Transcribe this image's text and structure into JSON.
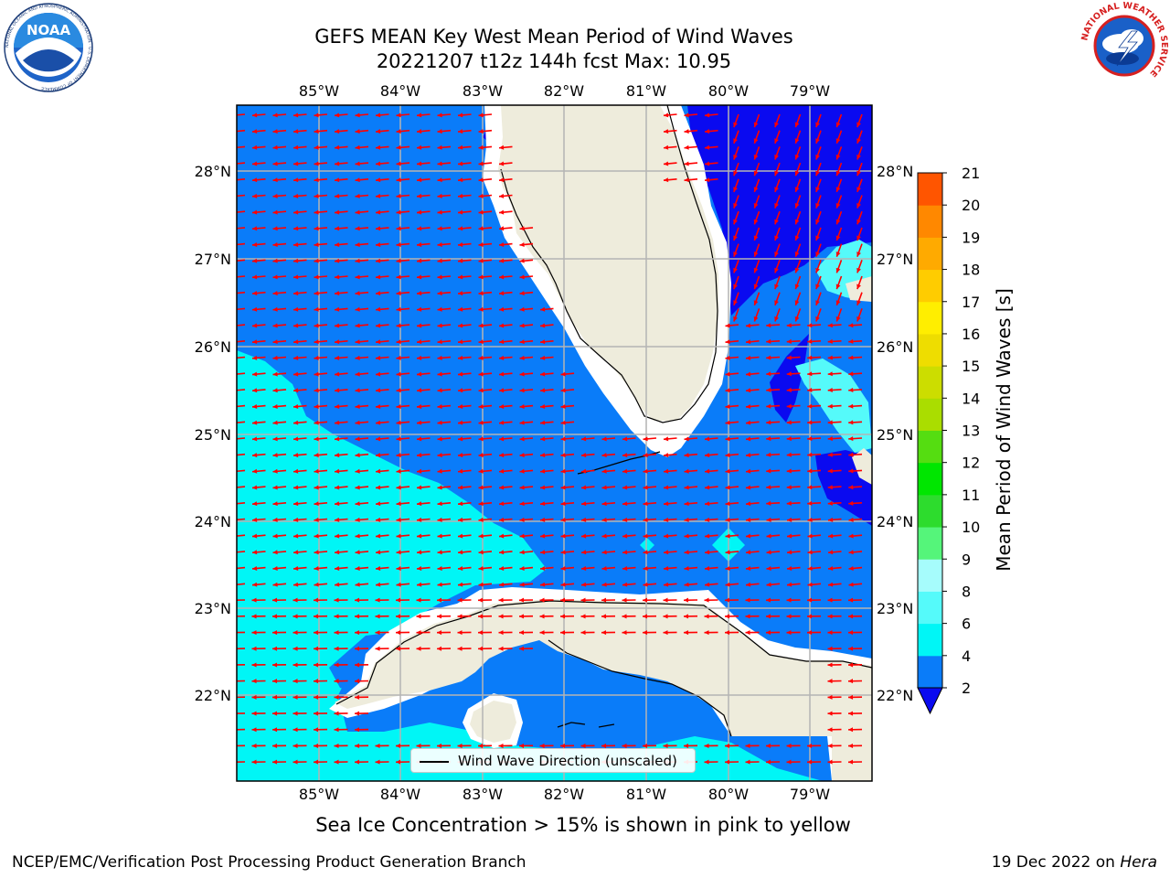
{
  "header": {
    "title_line1": "GEFS MEAN Key West Mean Period of Wind Waves",
    "title_line2": "20221207 t12z 144h fcst   Max: 10.95"
  },
  "logos": {
    "left": {
      "icon": "noaa-logo",
      "text": "NOAA",
      "ring_text": "NATIONAL OCEANIC AND ATMOSPHERIC ADMINISTRATION · U.S. DEPARTMENT OF COMMERCE"
    },
    "right": {
      "icon": "nws-logo",
      "ring_text": "NATIONAL WEATHER SERVICE"
    }
  },
  "map": {
    "lon_ticks": [
      "85°W",
      "84°W",
      "83°W",
      "82°W",
      "81°W",
      "80°W",
      "79°W"
    ],
    "lat_ticks": [
      "28°N",
      "27°N",
      "26°N",
      "25°N",
      "24°N",
      "23°N",
      "22°N"
    ],
    "legend_label": "Wind Wave Direction (unscaled)",
    "colors": {
      "land": "#eeecdc",
      "level_2_4": "#0a7cf9",
      "level_under_2": "#0a0af0",
      "level_4_6": "#00f6f6",
      "level_6_8": "#55fafa",
      "arrow": "#ff0000"
    }
  },
  "colorbar": {
    "label": "Mean Period of Wind Waves [s]",
    "ticks": [
      "2",
      "4",
      "6",
      "8",
      "9",
      "10",
      "11",
      "12",
      "13",
      "14",
      "15",
      "16",
      "17",
      "18",
      "19",
      "20",
      "21"
    ],
    "colors": [
      "#0a7cf9",
      "#00f6f6",
      "#55fafa",
      "#a6fcfc",
      "#55f57a",
      "#2ddc2d",
      "#00e600",
      "#55dd11",
      "#aadd00",
      "#ccdd00",
      "#eedd00",
      "#ffee00",
      "#ffcc00",
      "#ffaa00",
      "#ff8800",
      "#ff5500"
    ]
  },
  "caption": "Sea Ice Concentration > 15% is shown in pink to yellow",
  "footer": {
    "left": "NCEP/EMC/Verification Post Processing Product Generation Branch",
    "right_date": "19 Dec 2022 on ",
    "right_host": "Hera"
  }
}
